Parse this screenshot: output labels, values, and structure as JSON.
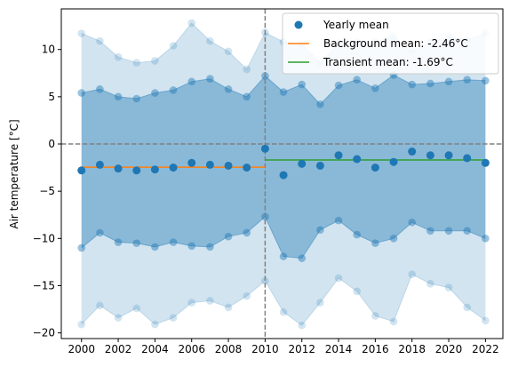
{
  "chart_data": {
    "type": "line",
    "title": "",
    "xlabel": "",
    "ylabel": "Air temperature [°C]",
    "xlim": [
      1998.9,
      2022.95
    ],
    "ylim": [
      -20.6,
      14.3
    ],
    "xticks": [
      "2000",
      "2002",
      "2004",
      "2006",
      "2008",
      "2010",
      "2012",
      "2014",
      "2016",
      "2018",
      "2020",
      "2022"
    ],
    "yticks": [
      "−20",
      "−15",
      "−10",
      "−5",
      "0",
      "5",
      "10"
    ],
    "grid": false,
    "legend_position": "upper right",
    "x": [
      2000,
      2001,
      2002,
      2003,
      2004,
      2005,
      2006,
      2007,
      2008,
      2009,
      2010,
      2011,
      2012,
      2013,
      2014,
      2015,
      2016,
      2017,
      2018,
      2019,
      2020,
      2021,
      2022
    ],
    "yearly_mean": [
      -2.8,
      -2.2,
      -2.6,
      -2.8,
      -2.7,
      -2.5,
      -2.0,
      -2.2,
      -2.3,
      -2.5,
      -0.5,
      -3.3,
      -2.1,
      -2.3,
      -1.2,
      -1.6,
      -2.5,
      -1.9,
      -0.8,
      -1.2,
      -1.2,
      -1.5,
      -2.0
    ],
    "band_inner_upper": [
      5.4,
      5.8,
      5.0,
      4.8,
      5.4,
      5.7,
      6.6,
      6.9,
      5.8,
      5.0,
      7.2,
      5.5,
      6.3,
      4.2,
      6.2,
      6.8,
      5.9,
      7.3,
      6.3,
      6.4,
      6.6,
      6.8,
      6.7
    ],
    "band_inner_lower": [
      -11.0,
      -9.4,
      -10.4,
      -10.5,
      -10.9,
      -10.4,
      -10.8,
      -10.9,
      -9.8,
      -9.4,
      -7.7,
      -11.9,
      -12.1,
      -9.1,
      -8.1,
      -9.6,
      -10.5,
      -10.0,
      -8.3,
      -9.2,
      -9.2,
      -9.2,
      -10.0
    ],
    "band_outer_upper": [
      11.7,
      10.9,
      9.2,
      8.6,
      8.8,
      10.4,
      12.8,
      10.9,
      9.8,
      7.9,
      11.8,
      10.8,
      10.6,
      8.6,
      10.7,
      10.8,
      10.8,
      11.4,
      9.8,
      10.8,
      11.4,
      11.0,
      11.8
    ],
    "band_outer_lower": [
      -19.1,
      -17.1,
      -18.4,
      -17.4,
      -19.1,
      -18.4,
      -16.8,
      -16.6,
      -17.3,
      -16.1,
      -14.5,
      -17.8,
      -19.2,
      -16.8,
      -14.2,
      -15.6,
      -18.2,
      -18.8,
      -13.8,
      -14.8,
      -15.2,
      -17.3,
      -18.7
    ],
    "background_mean": {
      "value": -2.46,
      "x_range": [
        2000,
        2010
      ]
    },
    "transient_mean": {
      "value": -1.69,
      "x_range": [
        2010,
        2022
      ]
    },
    "reference_lines": {
      "vertical_x": 2010,
      "horizontal_y": 0
    },
    "legend": [
      {
        "label": "Yearly mean",
        "kind": "marker",
        "color": "#1f77b4"
      },
      {
        "label": "Background mean: -2.46°C",
        "kind": "line",
        "color": "#ff7f0e"
      },
      {
        "label": "Transient mean: -1.69°C",
        "kind": "line",
        "color": "#2ca02c"
      }
    ],
    "colors": {
      "points": "#1f77b4",
      "inner_band": "#1f77b4",
      "outer_band": "#1f77b4",
      "background": "#ff7f0e",
      "transient": "#2ca02c",
      "reference": "#808080"
    }
  }
}
